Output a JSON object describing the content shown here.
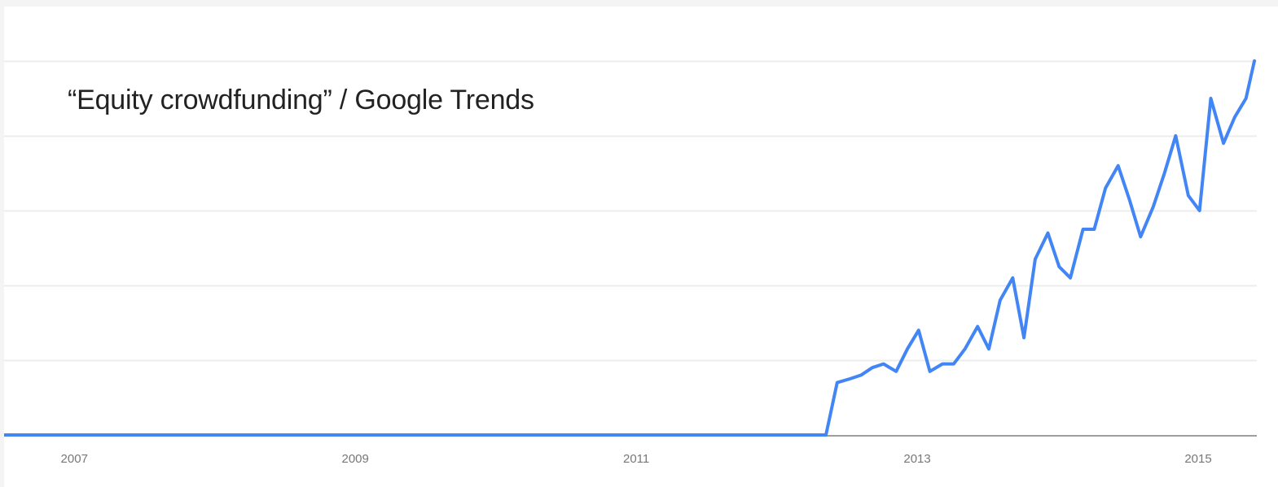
{
  "chart_data": {
    "type": "line",
    "title": "“Equity crowdfunding” / Google Trends",
    "xlabel": "",
    "ylabel": "",
    "grid": true,
    "legend": "none",
    "x_tick_labels": [
      "2007",
      "2009",
      "2011",
      "2013",
      "2015"
    ],
    "x_tick_years": [
      2007,
      2009,
      2011,
      2013,
      2015
    ],
    "xlim": [
      2006.5,
      2015.4
    ],
    "ylim": [
      0,
      100
    ],
    "series": [
      {
        "color": "#4285f4",
        "x": [
          2006.5,
          2012.35,
          2012.43,
          2012.52,
          2012.6,
          2012.68,
          2012.76,
          2012.85,
          2012.93,
          2013.01,
          2013.09,
          2013.18,
          2013.26,
          2013.34,
          2013.43,
          2013.51,
          2013.59,
          2013.68,
          2013.76,
          2013.84,
          2013.93,
          2014.01,
          2014.09,
          2014.18,
          2014.26,
          2014.34,
          2014.43,
          2014.51,
          2014.59,
          2014.68,
          2014.76,
          2014.84,
          2014.93,
          2015.01,
          2015.09,
          2015.18,
          2015.26,
          2015.34,
          2015.4
        ],
        "y": [
          0,
          0,
          14,
          15,
          16,
          18,
          19,
          17,
          23,
          28,
          17,
          19,
          19,
          23,
          29,
          23,
          36,
          42,
          26,
          47,
          54,
          45,
          42,
          55,
          55,
          66,
          72,
          63,
          53,
          61,
          70,
          80,
          64,
          60,
          90,
          78,
          85,
          90,
          100
        ]
      }
    ]
  }
}
